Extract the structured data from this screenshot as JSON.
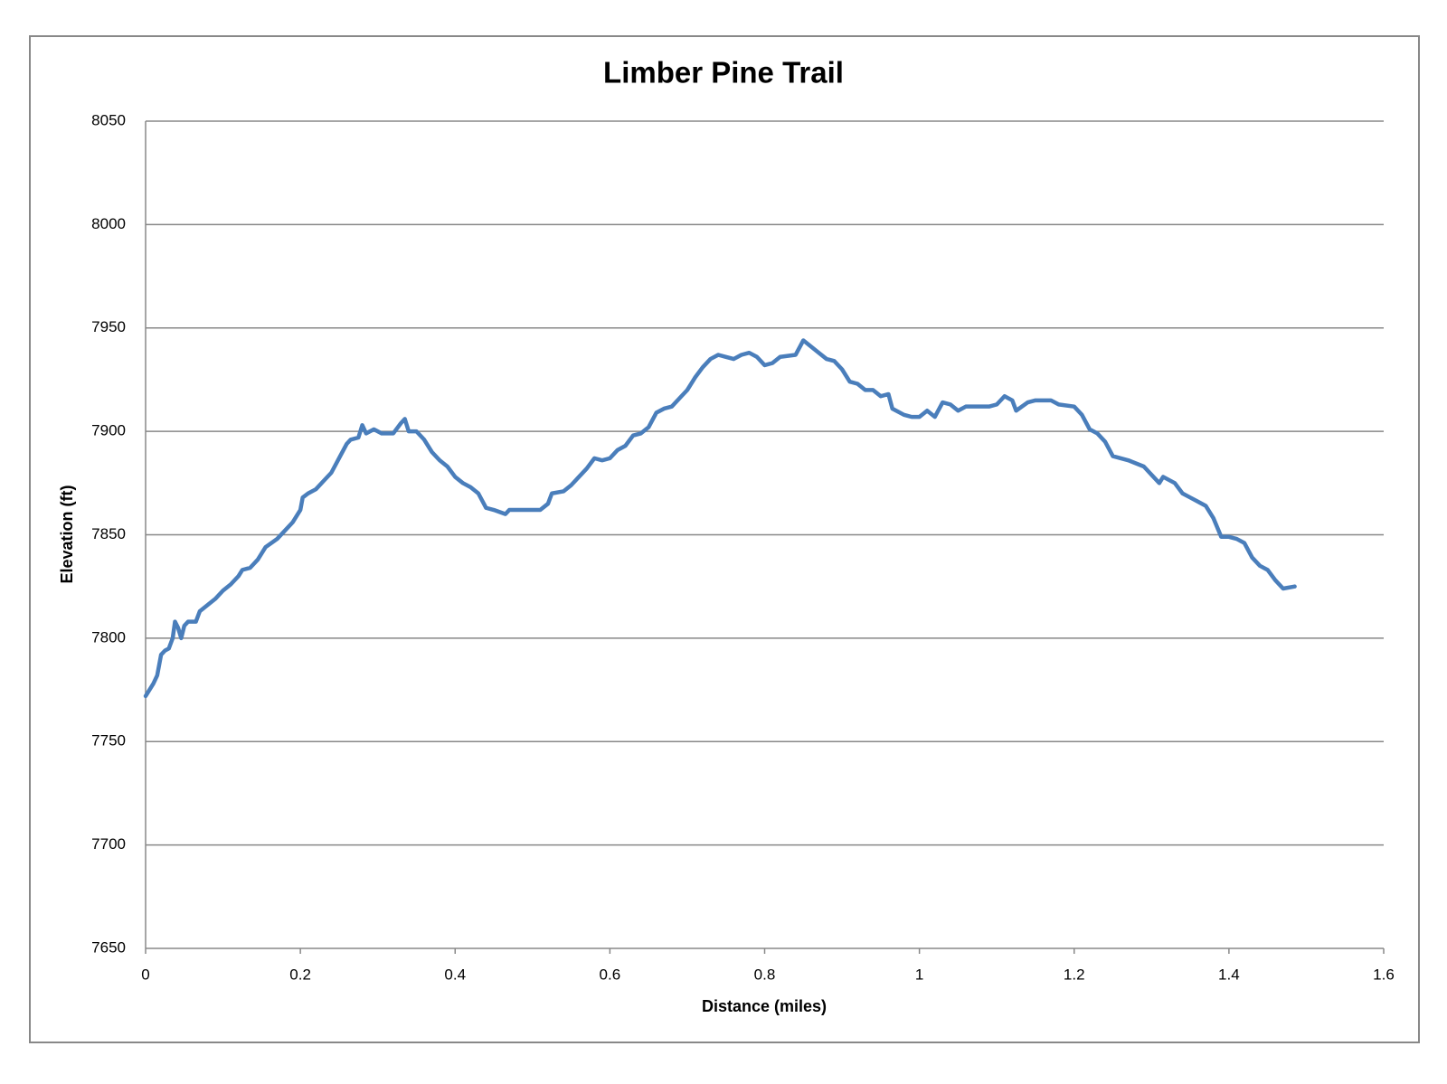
{
  "chart_data": {
    "type": "line",
    "title": "Limber Pine Trail",
    "xlabel": "Distance (miles)",
    "ylabel": "Elevation (ft)",
    "xlim": [
      0,
      1.6
    ],
    "xticks": [
      0,
      0.2,
      0.4,
      0.6,
      0.8,
      1,
      1.2,
      1.4,
      1.6
    ],
    "ylim": [
      7650,
      8050
    ],
    "yticks": [
      7650,
      7700,
      7750,
      7800,
      7850,
      7900,
      7950,
      8000,
      8050
    ],
    "grid": true,
    "x": [
      0,
      0.005,
      0.01,
      0.015,
      0.02,
      0.025,
      0.03,
      0.035,
      0.038,
      0.042,
      0.046,
      0.05,
      0.055,
      0.065,
      0.07,
      0.08,
      0.09,
      0.1,
      0.11,
      0.12,
      0.125,
      0.135,
      0.145,
      0.155,
      0.17,
      0.18,
      0.19,
      0.2,
      0.203,
      0.21,
      0.22,
      0.23,
      0.24,
      0.25,
      0.26,
      0.265,
      0.275,
      0.28,
      0.285,
      0.295,
      0.305,
      0.32,
      0.33,
      0.335,
      0.34,
      0.35,
      0.36,
      0.37,
      0.38,
      0.39,
      0.4,
      0.41,
      0.42,
      0.43,
      0.44,
      0.45,
      0.465,
      0.47,
      0.49,
      0.5,
      0.51,
      0.52,
      0.525,
      0.54,
      0.55,
      0.56,
      0.57,
      0.58,
      0.59,
      0.6,
      0.61,
      0.62,
      0.63,
      0.64,
      0.65,
      0.66,
      0.67,
      0.68,
      0.69,
      0.7,
      0.71,
      0.72,
      0.73,
      0.74,
      0.75,
      0.76,
      0.77,
      0.78,
      0.79,
      0.8,
      0.81,
      0.82,
      0.84,
      0.85,
      0.86,
      0.87,
      0.88,
      0.89,
      0.9,
      0.91,
      0.92,
      0.93,
      0.94,
      0.95,
      0.96,
      0.965,
      0.98,
      0.99,
      1.0,
      1.01,
      1.02,
      1.03,
      1.04,
      1.05,
      1.06,
      1.07,
      1.09,
      1.1,
      1.11,
      1.12,
      1.125,
      1.14,
      1.15,
      1.17,
      1.18,
      1.2,
      1.21,
      1.22,
      1.23,
      1.24,
      1.25,
      1.27,
      1.29,
      1.3,
      1.31,
      1.315,
      1.33,
      1.34,
      1.35,
      1.36,
      1.37,
      1.38,
      1.39,
      1.4,
      1.41,
      1.42,
      1.43,
      1.44,
      1.45,
      1.46,
      1.47,
      1.485
    ],
    "series": [
      {
        "name": "Elevation",
        "color": "#4a7ebb",
        "values": [
          7772,
          7775,
          7778,
          7782,
          7792,
          7794,
          7795,
          7800,
          7808,
          7805,
          7800,
          7806,
          7808,
          7808,
          7813,
          7816,
          7819,
          7823,
          7826,
          7830,
          7833,
          7834,
          7838,
          7844,
          7848,
          7852,
          7856,
          7862,
          7868,
          7870,
          7872,
          7876,
          7880,
          7887,
          7894,
          7896,
          7897,
          7903,
          7899,
          7901,
          7899,
          7899,
          7904,
          7906,
          7900,
          7900,
          7896,
          7890,
          7886,
          7883,
          7878,
          7875,
          7873,
          7870,
          7863,
          7862,
          7860,
          7862,
          7862,
          7862,
          7862,
          7865,
          7870,
          7871,
          7874,
          7878,
          7882,
          7887,
          7886,
          7887,
          7891,
          7893,
          7898,
          7899,
          7902,
          7909,
          7911,
          7912,
          7916,
          7920,
          7926,
          7931,
          7935,
          7937,
          7936,
          7935,
          7937,
          7938,
          7936,
          7932,
          7933,
          7936,
          7937,
          7944,
          7941,
          7938,
          7935,
          7934,
          7930,
          7924,
          7923,
          7920,
          7920,
          7917,
          7918,
          7911,
          7908,
          7907,
          7907,
          7910,
          7907,
          7914,
          7913,
          7910,
          7912,
          7912,
          7912,
          7913,
          7917,
          7915,
          7910,
          7914,
          7915,
          7915,
          7913,
          7912,
          7908,
          7901,
          7899,
          7895,
          7888,
          7886,
          7883,
          7879,
          7875,
          7878,
          7875,
          7870,
          7868,
          7866,
          7864,
          7858,
          7849,
          7849,
          7848,
          7846,
          7839,
          7835,
          7833,
          7828,
          7824,
          7825
        ]
      }
    ]
  }
}
